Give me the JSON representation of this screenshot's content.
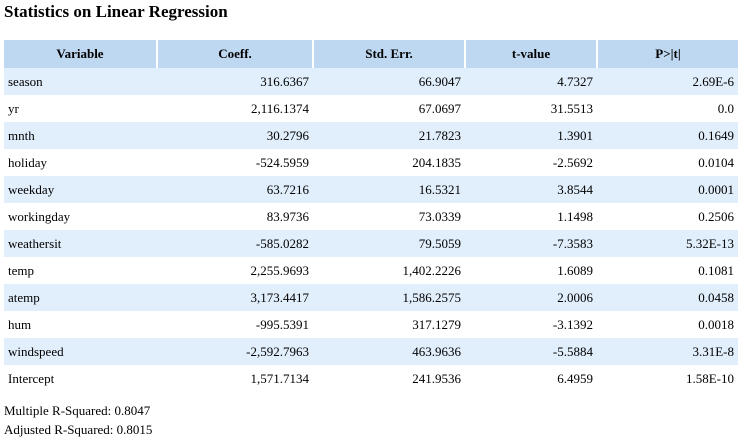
{
  "title": "Statistics on Linear Regression",
  "table": {
    "headers": [
      "Variable",
      "Coeff.",
      "Std. Err.",
      "t-value",
      "P>|t|"
    ],
    "rows": [
      [
        "season",
        "316.6367",
        "66.9047",
        "4.7327",
        "2.69E-6"
      ],
      [
        "yr",
        "2,116.1374",
        "67.0697",
        "31.5513",
        "0.0"
      ],
      [
        "mnth",
        "30.2796",
        "21.7823",
        "1.3901",
        "0.1649"
      ],
      [
        "holiday",
        "-524.5959",
        "204.1835",
        "-2.5692",
        "0.0104"
      ],
      [
        "weekday",
        "63.7216",
        "16.5321",
        "3.8544",
        "0.0001"
      ],
      [
        "workingday",
        "83.9736",
        "73.0339",
        "1.1498",
        "0.2506"
      ],
      [
        "weathersit",
        "-585.0282",
        "79.5059",
        "-7.3583",
        "5.32E-13"
      ],
      [
        "temp",
        "2,255.9693",
        "1,402.2226",
        "1.6089",
        "0.1081"
      ],
      [
        "atemp",
        "3,173.4417",
        "1,586.2575",
        "2.0006",
        "0.0458"
      ],
      [
        "hum",
        "-995.5391",
        "317.1279",
        "-3.1392",
        "0.0018"
      ],
      [
        "windspeed",
        "-2,592.7963",
        "463.9636",
        "-5.5884",
        "3.31E-8"
      ],
      [
        "Intercept",
        "1,571.7134",
        "241.9536",
        "6.4959",
        "1.58E-10"
      ]
    ]
  },
  "footer": {
    "r_squared": "Multiple R-Squared: 0.8047",
    "adjusted_r_squared": "Adjusted R-Squared: 0.8015"
  },
  "colors": {
    "header_bg": "#bfd8f1",
    "odd_row_bg": "#e1eefb",
    "even_row_bg": "#ffffff"
  }
}
